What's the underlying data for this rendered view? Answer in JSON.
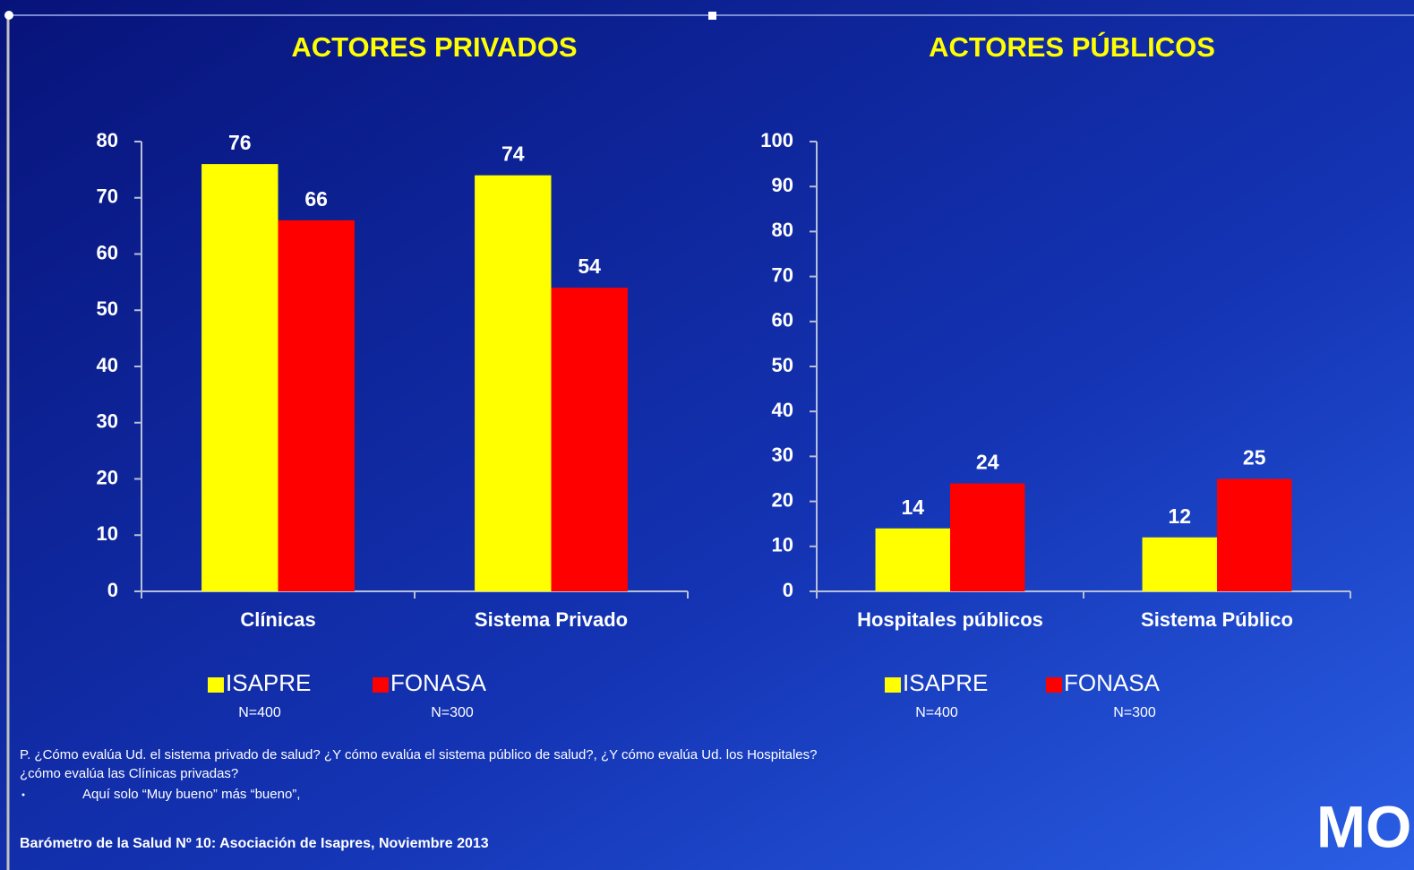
{
  "chart_data": [
    {
      "type": "bar",
      "title": "ACTORES PRIVADOS",
      "categories": [
        "Clínicas",
        "Sistema Privado"
      ],
      "series": [
        {
          "name": "ISAPRE",
          "sample": "N=400",
          "color": "#ffff00",
          "values": [
            76,
            74
          ]
        },
        {
          "name": "FONASA",
          "sample": "N=300",
          "color": "#ff0000",
          "values": [
            66,
            54
          ]
        }
      ],
      "ylim": [
        0,
        80
      ],
      "yticks": [
        0,
        10,
        20,
        30,
        40,
        50,
        60,
        70,
        80
      ]
    },
    {
      "type": "bar",
      "title": "ACTORES PÚBLICOS",
      "categories": [
        "Hospitales públicos",
        "Sistema Público"
      ],
      "series": [
        {
          "name": "ISAPRE",
          "sample": "N=400",
          "color": "#ffff00",
          "values": [
            14,
            12
          ]
        },
        {
          "name": "FONASA",
          "sample": "N=300",
          "color": "#ff0000",
          "values": [
            24,
            25
          ]
        }
      ],
      "ylim": [
        0,
        100
      ],
      "yticks": [
        0,
        10,
        20,
        30,
        40,
        50,
        60,
        70,
        80,
        90,
        100
      ]
    }
  ],
  "notes": [
    "P. ¿Cómo evalúa  Ud. el sistema privado de salud? ¿Y cómo evalúa el sistema público de salud?, ¿Y cómo evalúa Ud. los Hospitales?",
    "¿cómo evalúa las Clínicas privadas?",
    "Aquí solo “Muy bueno” más “bueno”,"
  ],
  "source": "Barómetro de la Salud Nº 10: Asociación de Isapres, Noviembre 2013",
  "logo": "MORI"
}
